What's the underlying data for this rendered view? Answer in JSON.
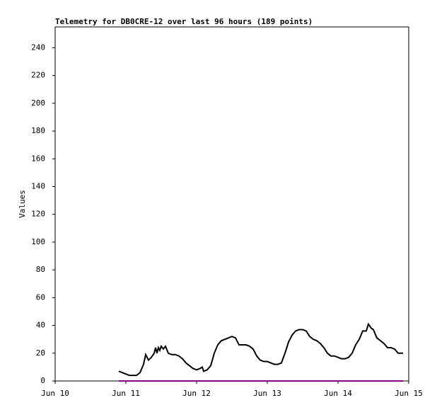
{
  "chart_data": {
    "type": "line",
    "title": "Telemetry for DB0CRE-12 over last 96 hours (189 points)",
    "y_label": "Values",
    "xlim": [
      0,
      5
    ],
    "ylim": [
      0,
      255
    ],
    "xticks": [
      {
        "value": 0,
        "label": "Jun 10"
      },
      {
        "value": 1,
        "label": "Jun 11"
      },
      {
        "value": 2,
        "label": "Jun 12"
      },
      {
        "value": 3,
        "label": "Jun 13"
      },
      {
        "value": 4,
        "label": "Jun 14"
      },
      {
        "value": 5,
        "label": "Jun 15"
      }
    ],
    "yticks": [
      0,
      20,
      40,
      60,
      80,
      100,
      120,
      140,
      160,
      180,
      200,
      220,
      240
    ],
    "series": [
      {
        "color": "#000000",
        "x": [
          0.9,
          0.95,
          1.0,
          1.05,
          1.1,
          1.15,
          1.2,
          1.25,
          1.28,
          1.32,
          1.36,
          1.4,
          1.42,
          1.44,
          1.46,
          1.48,
          1.5,
          1.53,
          1.56,
          1.6,
          1.65,
          1.7,
          1.75,
          1.8,
          1.85,
          1.9,
          1.95,
          2.0,
          2.05,
          2.08,
          2.1,
          2.15,
          2.2,
          2.25,
          2.3,
          2.35,
          2.4,
          2.45,
          2.5,
          2.55,
          2.6,
          2.7,
          2.75,
          2.8,
          2.85,
          2.9,
          2.95,
          3.0,
          3.05,
          3.1,
          3.15,
          3.2,
          3.25,
          3.3,
          3.35,
          3.4,
          3.45,
          3.5,
          3.55,
          3.6,
          3.65,
          3.7,
          3.75,
          3.8,
          3.85,
          3.9,
          3.95,
          4.0,
          4.05,
          4.1,
          4.15,
          4.2,
          4.25,
          4.3,
          4.35,
          4.4,
          4.43,
          4.47,
          4.5,
          4.55,
          4.6,
          4.65,
          4.7,
          4.75,
          4.8,
          4.85,
          4.9,
          4.92
        ],
        "values": [
          7,
          6,
          5,
          4,
          4,
          4,
          6,
          12,
          19,
          15,
          17,
          20,
          24,
          20,
          24,
          22,
          25,
          23,
          25,
          20,
          19,
          19,
          18,
          16,
          13,
          11,
          9,
          8,
          9,
          10,
          7,
          8,
          11,
          20,
          26,
          29,
          30,
          31,
          32,
          31,
          26,
          26,
          25,
          23,
          18,
          15,
          14,
          14,
          13,
          12,
          12,
          13,
          20,
          28,
          33,
          36,
          37,
          37,
          36,
          32,
          30,
          29,
          27,
          24,
          20,
          18,
          18,
          17,
          16,
          16,
          17,
          20,
          26,
          30,
          36,
          36,
          41,
          38,
          37,
          31,
          29,
          27,
          24,
          24,
          23,
          20,
          20,
          20
        ]
      },
      {
        "color": "#800080",
        "x": [
          0.9,
          4.92
        ],
        "values": [
          0,
          0
        ]
      }
    ]
  }
}
